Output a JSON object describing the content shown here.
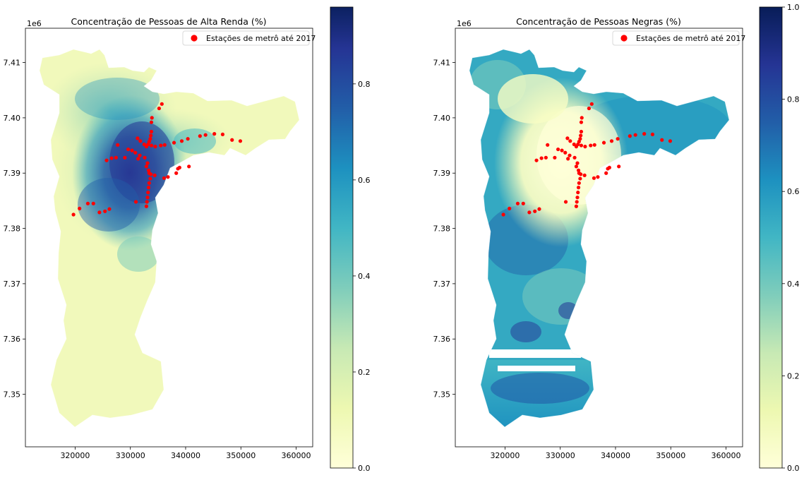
{
  "chart_data": [
    {
      "type": "map",
      "title": "Concentração de Pessoas de Alta Renda (%)",
      "x_ticks": [
        "320000",
        "330000",
        "340000",
        "350000",
        "360000"
      ],
      "y_ticks": [
        "7.35",
        "7.36",
        "7.37",
        "7.38",
        "7.39",
        "7.40",
        "7.41"
      ],
      "y_tick_values": [
        7.35,
        7.36,
        7.37,
        7.38,
        7.39,
        7.4,
        7.41
      ],
      "x_tick_values": [
        320000,
        330000,
        340000,
        350000,
        360000
      ],
      "y_offset": "1e6",
      "xlim": [
        311000,
        363000
      ],
      "ylim": [
        7.3405,
        7.4162
      ],
      "legend": "Estações de metrô até 2017",
      "legend_position": "upper right",
      "colormap": "YlGnBu",
      "colorbar": {
        "ticks": [
          "0.0",
          "0.2",
          "0.4",
          "0.6",
          "0.8"
        ],
        "tick_values": [
          0,
          0.2,
          0.4,
          0.6,
          0.8
        ],
        "range": [
          0,
          0.96
        ]
      }
    },
    {
      "type": "map",
      "title": "Concentração de Pessoas Negras (%)",
      "x_ticks": [
        "320000",
        "330000",
        "340000",
        "350000",
        "360000"
      ],
      "y_ticks": [
        "7.35",
        "7.36",
        "7.37",
        "7.38",
        "7.39",
        "7.40",
        "7.41"
      ],
      "y_tick_values": [
        7.35,
        7.36,
        7.37,
        7.38,
        7.39,
        7.4,
        7.41
      ],
      "x_tick_values": [
        320000,
        330000,
        340000,
        350000,
        360000
      ],
      "y_offset": "1e6",
      "xlim": [
        311000,
        363000
      ],
      "ylim": [
        7.3405,
        7.4162
      ],
      "legend": "Estações de metrô até 2017",
      "legend_position": "upper right",
      "colormap": "YlGnBu",
      "colorbar": {
        "ticks": [
          "0.0",
          "0.2",
          "0.4",
          "0.6",
          "0.8",
          "1.0"
        ],
        "tick_values": [
          0,
          0.2,
          0.4,
          0.6,
          0.8,
          1.0
        ],
        "range": [
          0,
          1.0
        ]
      }
    }
  ],
  "stations": [
    [
      333900,
      7.4
    ],
    [
      333800,
      7.3992
    ],
    [
      335700,
      7.4025
    ],
    [
      335200,
      7.4017
    ],
    [
      333800,
      7.3975
    ],
    [
      333700,
      7.3968
    ],
    [
      333600,
      7.3962
    ],
    [
      333400,
      7.3957
    ],
    [
      333200,
      7.3952
    ],
    [
      332900,
      7.3948
    ],
    [
      332500,
      7.3952
    ],
    [
      331800,
      7.3958
    ],
    [
      331300,
      7.3963
    ],
    [
      333800,
      7.395
    ],
    [
      334500,
      7.3948
    ],
    [
      335500,
      7.395
    ],
    [
      336200,
      7.3951
    ],
    [
      337900,
      7.3955
    ],
    [
      339300,
      7.3958
    ],
    [
      340400,
      7.3962
    ],
    [
      342600,
      7.3967
    ],
    [
      343600,
      7.3969
    ],
    [
      345200,
      7.3971
    ],
    [
      346700,
      7.397
    ],
    [
      348400,
      7.396
    ],
    [
      349900,
      7.3958
    ],
    [
      327700,
      7.3951
    ],
    [
      329600,
      7.3943
    ],
    [
      330300,
      7.3941
    ],
    [
      330900,
      7.3937
    ],
    [
      331700,
      7.3932
    ],
    [
      332600,
      7.3928
    ],
    [
      331400,
      7.3926
    ],
    [
      329000,
      7.3928
    ],
    [
      327400,
      7.3928
    ],
    [
      326600,
      7.3927
    ],
    [
      325700,
      7.3923
    ],
    [
      333100,
      7.3918
    ],
    [
      332900,
      7.3912
    ],
    [
      333300,
      7.3905
    ],
    [
      333400,
      7.39
    ],
    [
      333700,
      7.3898
    ],
    [
      334400,
      7.3896
    ],
    [
      333600,
      7.389
    ],
    [
      336100,
      7.3891
    ],
    [
      336800,
      7.3893
    ],
    [
      338300,
      7.39
    ],
    [
      338600,
      7.3908
    ],
    [
      338900,
      7.391
    ],
    [
      340600,
      7.3912
    ],
    [
      333400,
      7.3882
    ],
    [
      333300,
      7.3874
    ],
    [
      333200,
      7.3865
    ],
    [
      333100,
      7.3856
    ],
    [
      333000,
      7.3848
    ],
    [
      332900,
      7.384
    ],
    [
      331000,
      7.3848
    ],
    [
      323300,
      7.3845
    ],
    [
      322300,
      7.3845
    ],
    [
      320800,
      7.3836
    ],
    [
      319700,
      7.3825
    ],
    [
      324400,
      7.3829
    ],
    [
      325400,
      7.3831
    ],
    [
      326200,
      7.3835
    ]
  ]
}
